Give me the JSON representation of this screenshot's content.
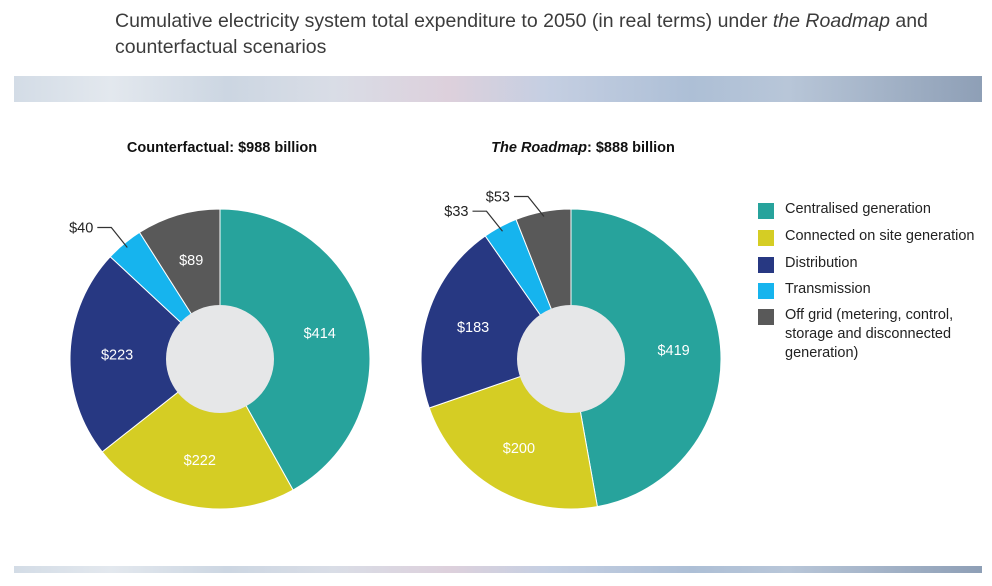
{
  "title": {
    "part1": "Cumulative electricity system total expenditure to 2050 (in real terms) under ",
    "italic": "the Roadmap",
    "part2": " and counterfactual scenarios"
  },
  "chart_data": [
    {
      "type": "pie",
      "title_italic": "",
      "title_rest": "Counterfactual: $988 billion",
      "categories": [
        "Centralised generation",
        "Connected on site generation",
        "Distribution",
        "Transmission",
        "Off grid (metering, control, storage and disconnected generation)"
      ],
      "values": [
        414,
        222,
        223,
        40,
        89
      ],
      "labels": [
        "$414",
        "$222",
        "$223",
        "$40",
        "$89"
      ]
    },
    {
      "type": "pie",
      "title_italic": "The Roadmap",
      "title_rest": ": $888 billion",
      "categories": [
        "Centralised generation",
        "Connected on site generation",
        "Distribution",
        "Transmission",
        "Off grid (metering, control, storage and disconnected generation)"
      ],
      "values": [
        419,
        200,
        183,
        33,
        53
      ],
      "labels": [
        "$419",
        "$200",
        "$183",
        "$33",
        "$53"
      ]
    }
  ],
  "legend": [
    {
      "label": "Centralised generation",
      "color": "#27a39c"
    },
    {
      "label": "Connected on site generation",
      "color": "#d5cd24"
    },
    {
      "label": "Distribution",
      "color": "#273882"
    },
    {
      "label": "Transmission",
      "color": "#16b4ee"
    },
    {
      "label": "Off grid (metering, control, storage and disconnected generation)",
      "color": "#595959"
    }
  ],
  "colors": [
    "#27a39c",
    "#d5cd24",
    "#273882",
    "#16b4ee",
    "#595959"
  ],
  "hole_color": "#e6e7e8"
}
